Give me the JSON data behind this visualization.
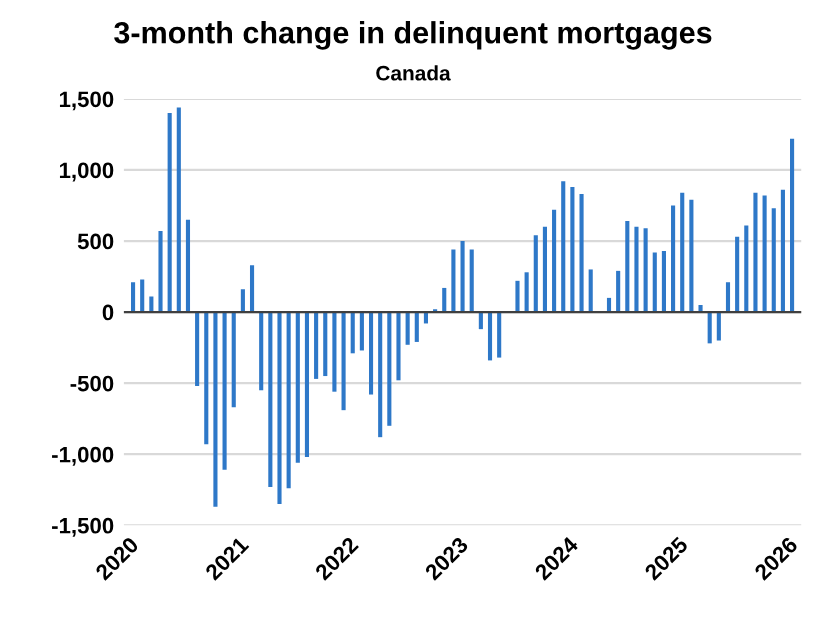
{
  "chart_data": {
    "type": "bar",
    "title": "3-month change in delinquent mortgages",
    "subtitle": "Canada",
    "categories": [
      "2020",
      null,
      null,
      null,
      null,
      null,
      null,
      null,
      null,
      null,
      null,
      null,
      "2021",
      null,
      null,
      null,
      null,
      null,
      null,
      null,
      null,
      null,
      null,
      null,
      "2022",
      null,
      null,
      null,
      null,
      null,
      null,
      null,
      null,
      null,
      null,
      null,
      "2023",
      null,
      null,
      null,
      null,
      null,
      null,
      null,
      null,
      null,
      null,
      null,
      "2024",
      null,
      null,
      null,
      null,
      null,
      null,
      null,
      null,
      null,
      null,
      null,
      "2025",
      null,
      null,
      null,
      null,
      null,
      null,
      null,
      null,
      null,
      null,
      null,
      "2026"
    ],
    "values": [
      210,
      230,
      110,
      570,
      1400,
      1440,
      650,
      -520,
      -930,
      -1370,
      -1110,
      -670,
      160,
      330,
      -550,
      -1230,
      -1350,
      -1240,
      -1060,
      -1020,
      -470,
      -450,
      -560,
      -690,
      -290,
      -270,
      -580,
      -880,
      -800,
      -480,
      -230,
      -210,
      -80,
      20,
      170,
      440,
      500,
      440,
      -120,
      -340,
      -320,
      0,
      220,
      280,
      540,
      600,
      720,
      920,
      880,
      830,
      300,
      0,
      100,
      290,
      640,
      600,
      590,
      420,
      430,
      750,
      840,
      790,
      50,
      -220,
      -200,
      210,
      530,
      610,
      840,
      820,
      730,
      860,
      1220
    ],
    "color": "#2e78c8",
    "ylim": [
      -1500,
      1500
    ],
    "yticks": [
      {
        "value": -1500,
        "label": "-1,500"
      },
      {
        "value": -1000,
        "label": "-1,000"
      },
      -500,
      0,
      500,
      {
        "value": 1000,
        "label": "1,000"
      },
      {
        "value": 1500,
        "label": "1,500"
      }
    ],
    "grid": "y"
  }
}
